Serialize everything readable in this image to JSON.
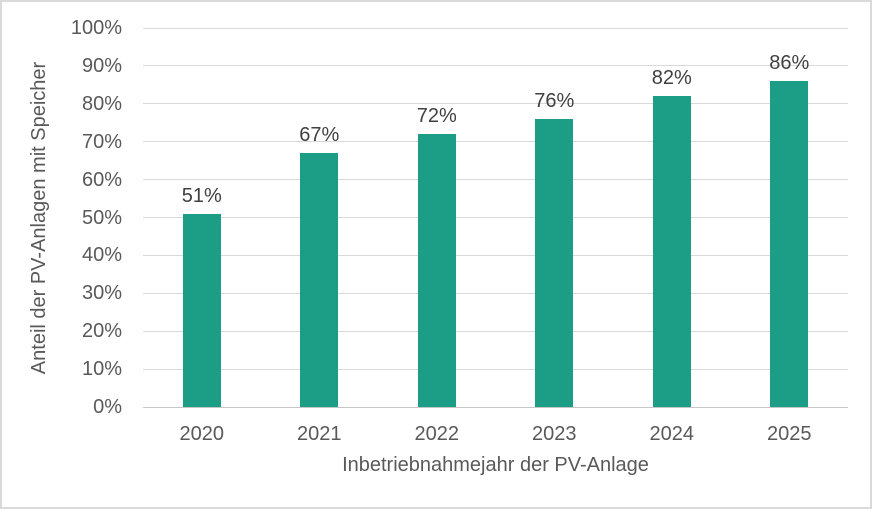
{
  "frame": {
    "background": "#ffffff",
    "border_color": "#dadada"
  },
  "colors": {
    "bar": "#1c9d86",
    "gridline": "#d9d9d9",
    "baseline": "#c6c6c6",
    "tick_text": "#595959",
    "data_label_text": "#404040"
  },
  "chart_data": {
    "type": "bar",
    "title": "",
    "categories": [
      "2020",
      "2021",
      "2022",
      "2023",
      "2024",
      "2025"
    ],
    "values": [
      51,
      67,
      72,
      76,
      82,
      86
    ],
    "data_labels": [
      "51%",
      "67%",
      "72%",
      "76%",
      "82%",
      "86%"
    ],
    "xlabel": "Inbetriebnahmejahr der PV-Anlage",
    "ylabel": "Anteil der PV-Anlagen mit Speicher",
    "y_tick_values": [
      0,
      10,
      20,
      30,
      40,
      50,
      60,
      70,
      80,
      90,
      100
    ],
    "y_tick_labels": [
      "0%",
      "10%",
      "20%",
      "30%",
      "40%",
      "50%",
      "60%",
      "70%",
      "80%",
      "90%",
      "100%"
    ],
    "ylim": [
      0,
      100
    ],
    "grid": true,
    "legend": false
  }
}
